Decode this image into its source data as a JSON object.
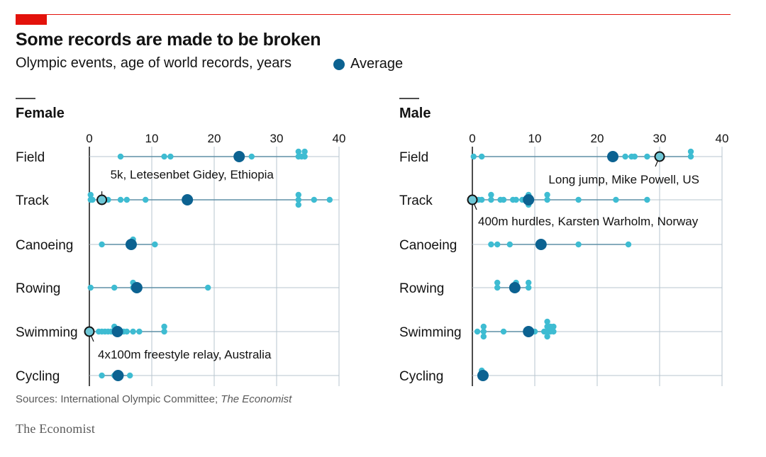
{
  "header": {
    "title": "Some records are made to be broken",
    "subtitle": "Olympic events, age of world records, years",
    "legend_label": "Average"
  },
  "footer": {
    "source_prefix": "Sources: International Olympic Committee; ",
    "source_italic": "The Economist",
    "brand": "The Economist"
  },
  "colors": {
    "brand_red": "#e3120b",
    "point": "#3ebcd2",
    "average": "#0c6291",
    "highlight": "#6fc7d6",
    "grid": "#b7c6cf",
    "line": "#5f8fa6"
  },
  "chart_data": [
    {
      "type": "scatter",
      "title": "Female",
      "xlim": [
        0,
        40
      ],
      "xticks": [
        0,
        10,
        20,
        30,
        40
      ],
      "categories": [
        "Field",
        "Track",
        "Canoeing",
        "Rowing",
        "Swimming",
        "Cycling"
      ],
      "series": [
        {
          "category": "Field",
          "points": [
            5,
            12,
            13,
            26,
            33.5,
            33.5,
            34,
            34.5,
            34.5
          ],
          "average": 24
        },
        {
          "category": "Track",
          "points": [
            0.2,
            0.2,
            0.5,
            2,
            3,
            5,
            6,
            9,
            33.5,
            33.5,
            33.5,
            36,
            38.5
          ],
          "average": 15.7
        },
        {
          "category": "Canoeing",
          "points": [
            2,
            6.5,
            7,
            7,
            10.5
          ],
          "average": 6.7
        },
        {
          "category": "Rowing",
          "points": [
            0.2,
            4,
            7,
            7,
            7.5,
            8,
            19
          ],
          "average": 7.6
        },
        {
          "category": "Swimming",
          "points": [
            0.2,
            1.5,
            2,
            2.5,
            3,
            3.5,
            4,
            4,
            4.5,
            5,
            5.5,
            6,
            7,
            8,
            12,
            12
          ],
          "average": 4.5
        },
        {
          "category": "Cycling",
          "points": [
            2,
            4,
            6.5
          ],
          "average": 4.6
        }
      ],
      "highlights": [
        {
          "category": "Track",
          "value": 2,
          "label": "5k, Letesenbet Gidey, Ethiopia"
        },
        {
          "category": "Swimming",
          "value": 0,
          "label": "4x100m freestyle relay, Australia"
        }
      ]
    },
    {
      "type": "scatter",
      "title": "Male",
      "xlim": [
        0,
        40
      ],
      "xticks": [
        0,
        10,
        20,
        30,
        40
      ],
      "categories": [
        "Field",
        "Track",
        "Canoeing",
        "Rowing",
        "Swimming",
        "Cycling"
      ],
      "series": [
        {
          "category": "Field",
          "points": [
            0.2,
            1.5,
            24.5,
            25.5,
            26,
            28,
            35,
            35
          ],
          "average": 22.5
        },
        {
          "category": "Track",
          "points": [
            0.5,
            1,
            1.5,
            3,
            3,
            4.5,
            5,
            6.5,
            7,
            8,
            9,
            9,
            9,
            12,
            12,
            17,
            23,
            28
          ],
          "average": 9
        },
        {
          "category": "Canoeing",
          "points": [
            3,
            4,
            6,
            17,
            25
          ],
          "average": 11
        },
        {
          "category": "Rowing",
          "points": [
            4,
            4,
            6.5,
            7,
            7,
            9,
            9
          ],
          "average": 6.8
        },
        {
          "category": "Swimming",
          "points": [
            0.8,
            1.8,
            1.8,
            1.8,
            5,
            9,
            10,
            11.5,
            12,
            12,
            12,
            12,
            12.5,
            12.5,
            13,
            13
          ],
          "average": 9
        },
        {
          "category": "Cycling",
          "points": [
            1.5,
            1.5,
            2
          ],
          "average": 1.7
        }
      ],
      "highlights": [
        {
          "category": "Field",
          "value": 30,
          "label": "Long jump, Mike Powell, US"
        },
        {
          "category": "Track",
          "value": 0,
          "label": "400m hurdles, Karsten Warholm, Norway"
        }
      ]
    }
  ]
}
